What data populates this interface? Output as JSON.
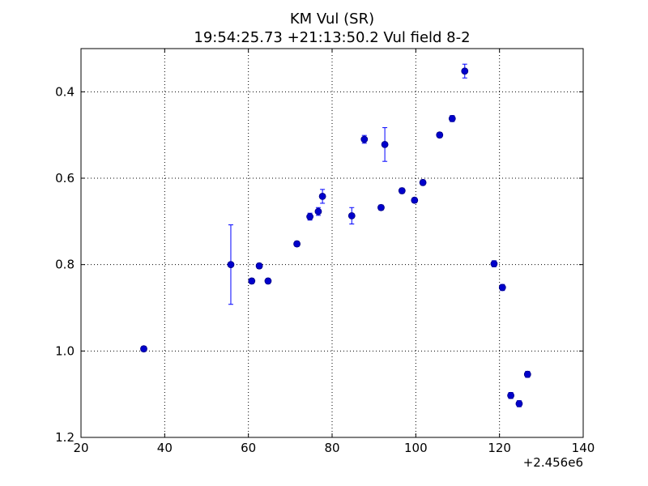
{
  "chart_data": {
    "type": "scatter",
    "title": "KM Vul (SR)",
    "subtitle": "19:54:25.73 +21:13:50.2 Vul field 8-2",
    "xlabel": "",
    "ylabel": "",
    "x_offset_label": "+2.456e6",
    "xlim": [
      20,
      140
    ],
    "ylim": [
      1.2,
      0.3
    ],
    "y_inverted": true,
    "x_ticks": [
      20,
      40,
      60,
      80,
      100,
      120,
      140
    ],
    "y_ticks": [
      0.4,
      0.6,
      0.8,
      1.0,
      1.2
    ],
    "x_tick_labels": [
      "20",
      "40",
      "60",
      "80",
      "100",
      "120",
      "140"
    ],
    "y_tick_labels": [
      "0.4",
      "0.6",
      "0.8",
      "1.0",
      "1.2"
    ],
    "grid": true,
    "marker_color": "#0000cc",
    "errorbar_color": "#0000ff",
    "points": [
      {
        "x": 35.0,
        "y": 0.995,
        "err": 0.006
      },
      {
        "x": 55.8,
        "y": 0.8,
        "err": 0.092
      },
      {
        "x": 60.8,
        "y": 0.838,
        "err": 0.006
      },
      {
        "x": 62.6,
        "y": 0.803,
        "err": 0.006
      },
      {
        "x": 64.7,
        "y": 0.838,
        "err": 0.006
      },
      {
        "x": 71.6,
        "y": 0.752,
        "err": 0.006
      },
      {
        "x": 74.7,
        "y": 0.689,
        "err": 0.008
      },
      {
        "x": 76.7,
        "y": 0.677,
        "err": 0.009
      },
      {
        "x": 77.7,
        "y": 0.642,
        "err": 0.016
      },
      {
        "x": 84.7,
        "y": 0.687,
        "err": 0.019
      },
      {
        "x": 87.7,
        "y": 0.51,
        "err": 0.009
      },
      {
        "x": 91.7,
        "y": 0.668,
        "err": 0.006
      },
      {
        "x": 92.6,
        "y": 0.522,
        "err": 0.039
      },
      {
        "x": 96.7,
        "y": 0.629,
        "err": 0.006
      },
      {
        "x": 99.7,
        "y": 0.651,
        "err": 0.006
      },
      {
        "x": 101.7,
        "y": 0.61,
        "err": 0.006
      },
      {
        "x": 105.7,
        "y": 0.5,
        "err": 0.006
      },
      {
        "x": 108.7,
        "y": 0.462,
        "err": 0.007
      },
      {
        "x": 111.7,
        "y": 0.352,
        "err": 0.016
      },
      {
        "x": 118.7,
        "y": 0.798,
        "err": 0.007
      },
      {
        "x": 120.7,
        "y": 0.853,
        "err": 0.007
      },
      {
        "x": 122.7,
        "y": 1.103,
        "err": 0.007
      },
      {
        "x": 124.7,
        "y": 1.122,
        "err": 0.007
      },
      {
        "x": 126.7,
        "y": 1.054,
        "err": 0.007
      }
    ]
  }
}
